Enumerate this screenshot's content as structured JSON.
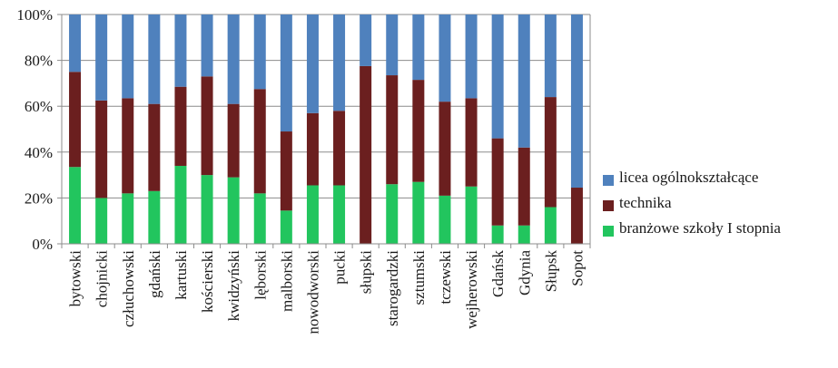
{
  "chart_data": {
    "type": "bar",
    "stacked": true,
    "percent": true,
    "categories": [
      "bytowski",
      "chojnicki",
      "człuchowski",
      "gdański",
      "kartuski",
      "kościerski",
      "kwidzyński",
      "lęborski",
      "malborski",
      "nowodworski",
      "pucki",
      "słupski",
      "starogardzki",
      "sztumski",
      "tczewski",
      "wejherowski",
      "Gdańsk",
      "Gdynia",
      "Słupsk",
      "Sopot"
    ],
    "series": [
      {
        "name": "branżowe szkoły I stopnia",
        "color": "#22c55e",
        "values": [
          33.5,
          20,
          22,
          23,
          34,
          30,
          29,
          22,
          14.5,
          25.5,
          25.5,
          0,
          26,
          27,
          21,
          25,
          8,
          8,
          16,
          0
        ]
      },
      {
        "name": "technika",
        "color": "#6b1f1f",
        "values": [
          41.5,
          42.5,
          41.5,
          38,
          34.5,
          43,
          32,
          45.5,
          34.5,
          31.5,
          32.5,
          77.5,
          47.5,
          44.5,
          41,
          38.5,
          38,
          34,
          48,
          24.5
        ]
      },
      {
        "name": "licea ogólnokształcące",
        "color": "#4f81bd",
        "values": [
          25,
          37.5,
          36.5,
          39,
          31.5,
          27,
          39,
          32.5,
          51,
          43,
          42,
          22.5,
          26.5,
          28.5,
          38,
          36.5,
          54,
          58,
          36,
          75.5
        ]
      }
    ],
    "legend_order": [
      "licea ogólnokształcące",
      "technika",
      "branżowe szkoły I stopnia"
    ],
    "yticks": [
      "0%",
      "20%",
      "40%",
      "60%",
      "80%",
      "100%"
    ],
    "ylim": [
      0,
      100
    ],
    "grid": true,
    "legend_position": "right"
  }
}
